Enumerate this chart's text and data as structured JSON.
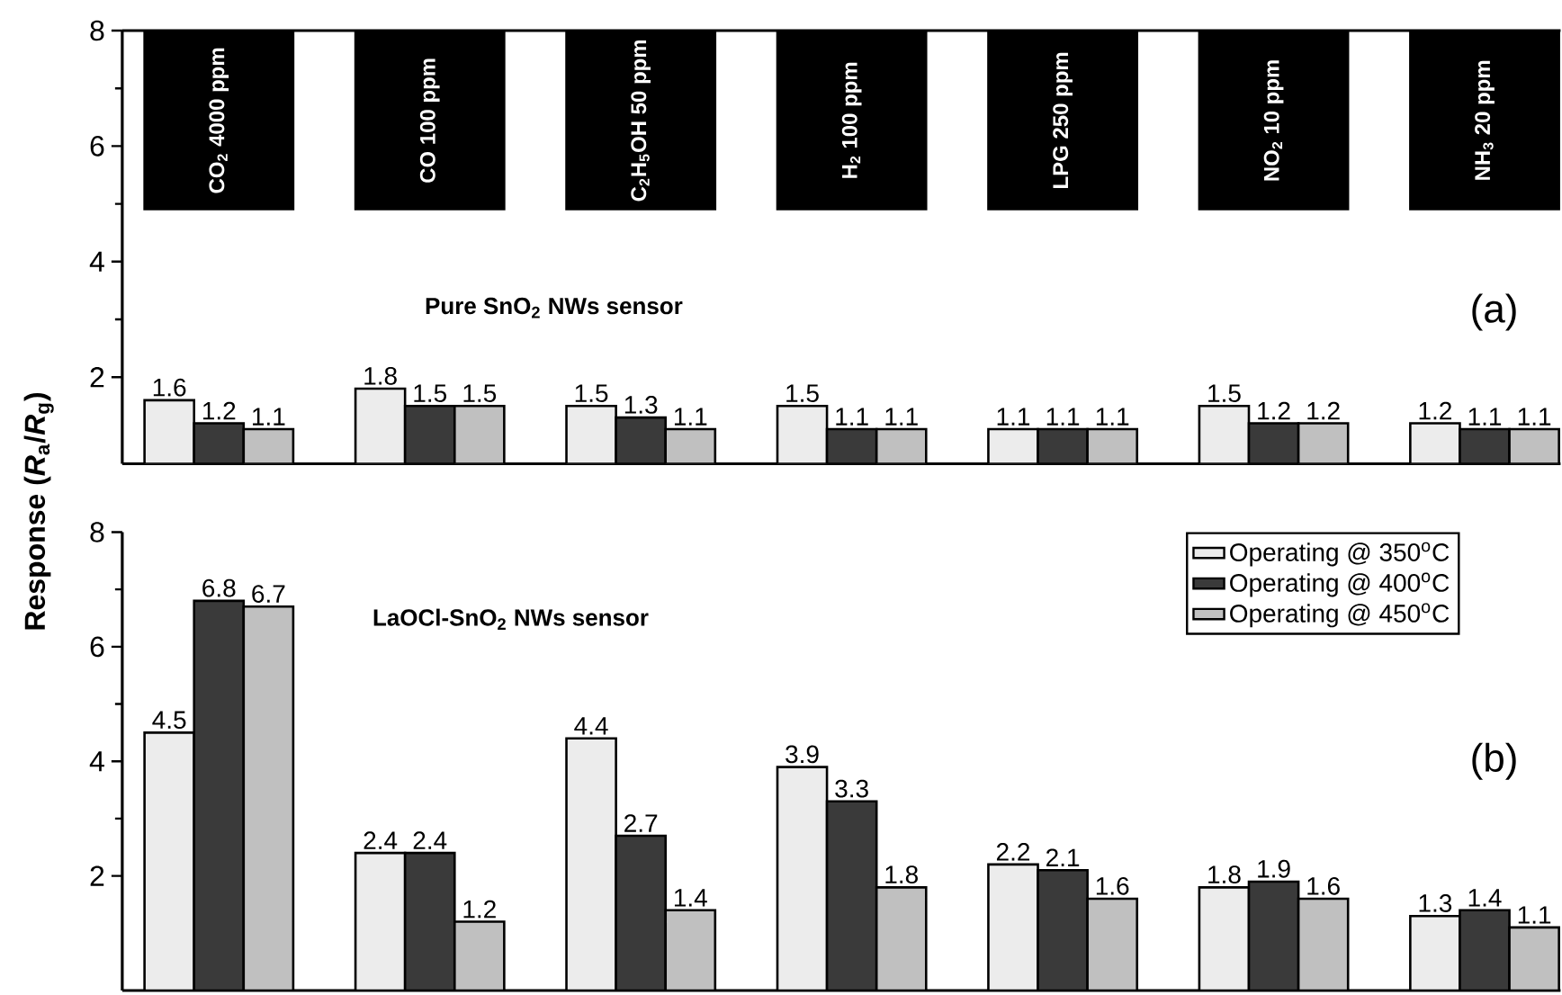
{
  "chart_data": [
    {
      "type": "bar",
      "title": "Pure SnO$_{2}$ NWs sensor",
      "ylabel": "Response (*R*$_{a}$/*R*$_{g}$)",
      "annotations": [
        "(a)"
      ],
      "categories": [
        "CO$_{2}$ 4000 ppm",
        "CO 100 ppm",
        "C$_{2}$H$_{5}$OH 50 ppm",
        "H$_{2}$ 100 ppm",
        "LPG 250 ppm",
        "NO$_{2}$ 10 ppm",
        "NH$_{3}$ 20 ppm"
      ],
      "series": [
        {
          "color": "#ececec",
          "values": [
            1.6,
            1.8,
            1.5,
            1.5,
            1.1,
            1.5,
            1.2
          ]
        },
        {
          "color": "#3a3a3a",
          "values": [
            1.2,
            1.5,
            1.3,
            1.1,
            1.1,
            1.2,
            1.1
          ]
        },
        {
          "color": "#c0c0c0",
          "values": [
            1.1,
            1.5,
            1.1,
            1.1,
            1.1,
            1.2,
            1.1
          ]
        }
      ],
      "ylim": [
        0.5,
        8
      ],
      "yticks": [
        2,
        4,
        6,
        8
      ],
      "data_labels": true
    },
    {
      "type": "bar",
      "title": "LaOCl-SnO$_{2}$ NWs sensor",
      "annotations": [
        "(b)"
      ],
      "categories": [
        null,
        null,
        null,
        null,
        null,
        null,
        null
      ],
      "series": [
        {
          "name": "Operating @ 350$^{o}$C",
          "color": "#ececec",
          "values": [
            4.5,
            2.4,
            4.4,
            3.9,
            2.2,
            1.8,
            1.3
          ]
        },
        {
          "name": "Operating @ 400$^{o}$C",
          "color": "#3a3a3a",
          "values": [
            6.8,
            2.4,
            2.7,
            3.3,
            2.1,
            1.9,
            1.4
          ]
        },
        {
          "name": "Operating @ 450$^{o}$C",
          "color": "#c0c0c0",
          "values": [
            6.7,
            1.2,
            1.4,
            1.8,
            1.6,
            1.6,
            1.1
          ]
        }
      ],
      "ylim": [
        0,
        8
      ],
      "yticks": [
        2,
        4,
        6,
        8
      ],
      "data_labels": true,
      "legend": "top right",
      "tick_labels": "y"
    }
  ]
}
